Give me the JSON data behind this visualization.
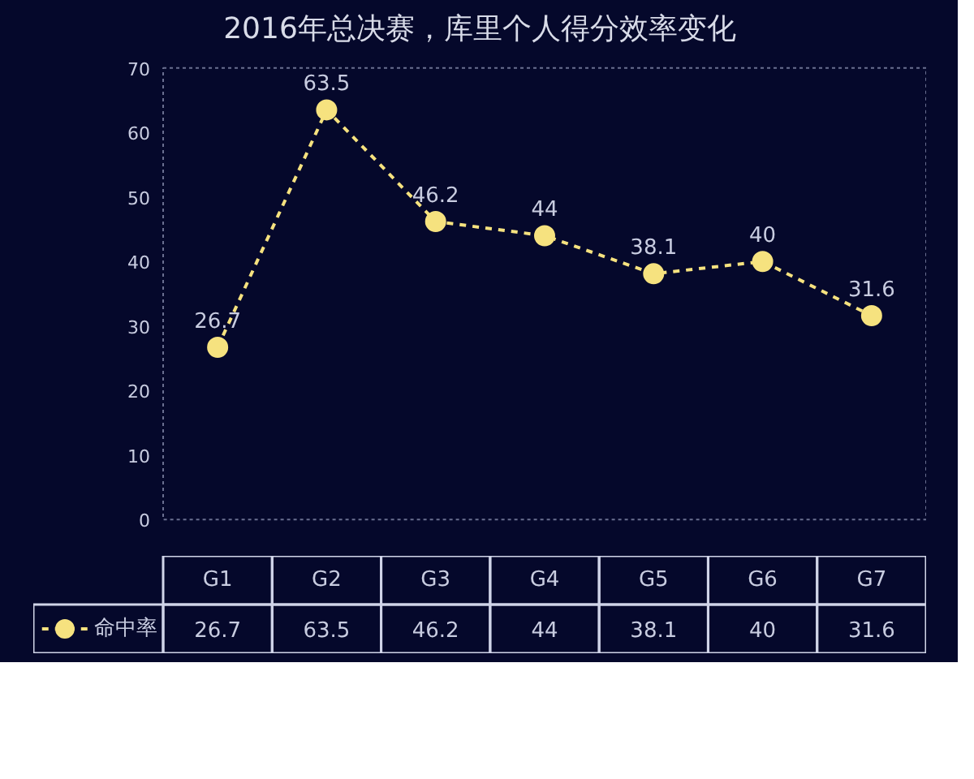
{
  "chart_data": {
    "type": "line",
    "title": "2016年总决赛，库里个人得分效率变化",
    "categories": [
      "G1",
      "G2",
      "G3",
      "G4",
      "G5",
      "G6",
      "G7"
    ],
    "series": [
      {
        "name": "命中率",
        "color": "#f6e27f",
        "values": [
          26.7,
          63.5,
          46.2,
          44,
          38.1,
          40,
          31.6
        ],
        "value_labels": [
          "26.7",
          "63.5",
          "46.2",
          "44",
          "38.1",
          "40",
          "31.6"
        ]
      }
    ],
    "ylim": [
      0,
      70
    ],
    "yticks": [
      0,
      10,
      20,
      30,
      40,
      50,
      60,
      70
    ],
    "annotations": [
      "26.7",
      "63.5",
      "46.2",
      "44",
      "38.1",
      "40",
      "31.6"
    ],
    "grid": false,
    "legend": "bottom",
    "marker": "circle",
    "line_style": "dashed"
  }
}
